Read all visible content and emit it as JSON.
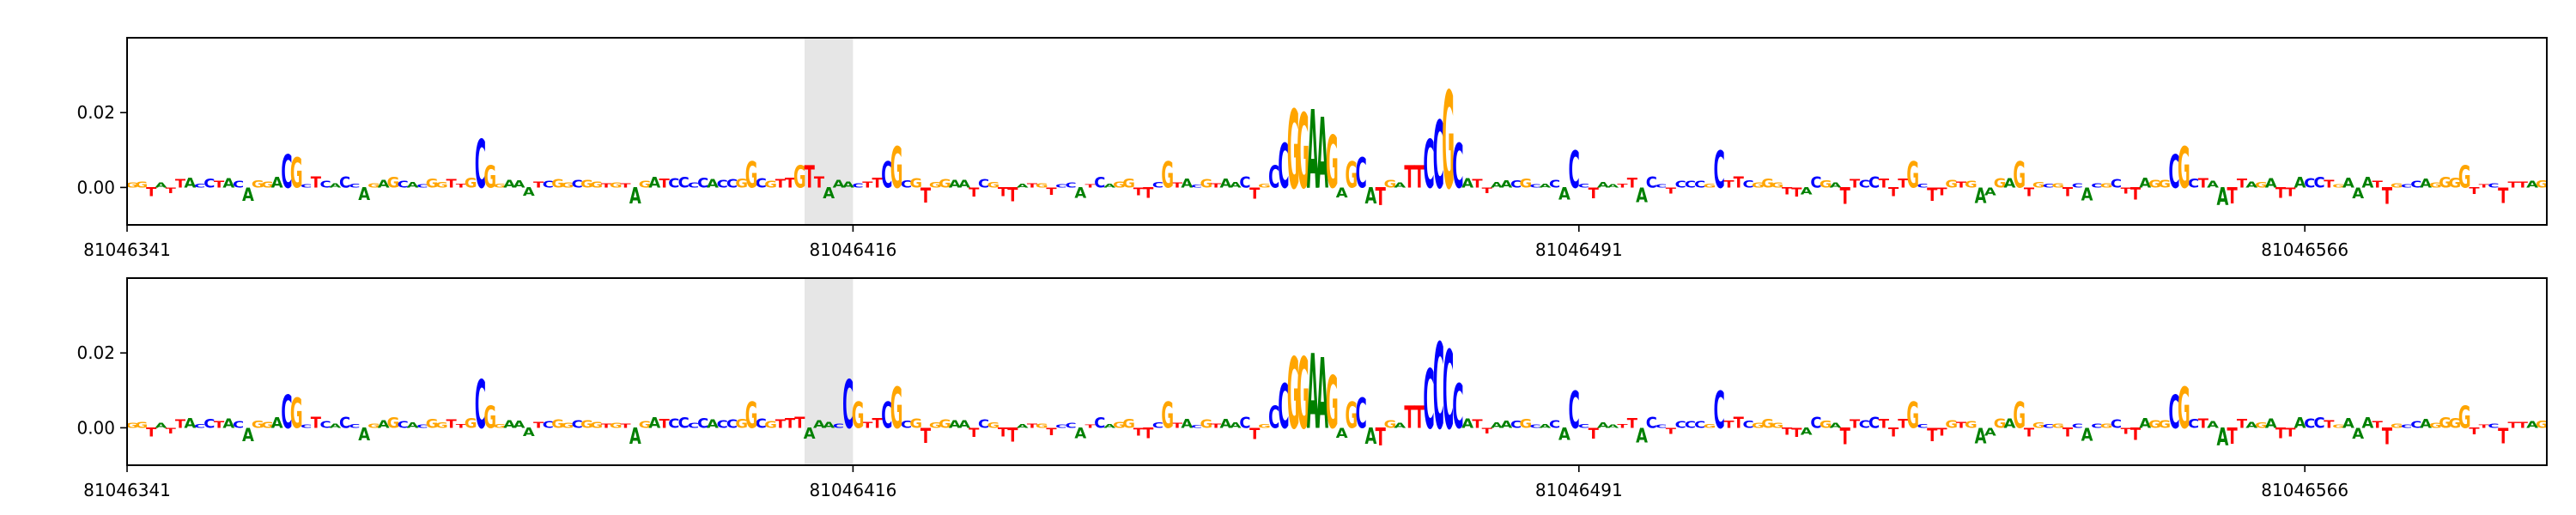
{
  "chart_data": [
    {
      "type": "sequence-logo",
      "panel": "top",
      "x_range": [
        81046341,
        81046591
      ],
      "xticks": [
        81046341,
        81046416,
        81046491,
        81046566
      ],
      "xtick_labels": [
        "81046341",
        "81046416",
        "81046491",
        "81046566"
      ],
      "ylim": [
        -0.01,
        0.04
      ],
      "yticks": [
        0.0,
        0.02
      ],
      "ytick_labels": [
        "0.00",
        "0.02"
      ],
      "highlight_range": [
        81046411,
        81046416
      ],
      "highlight_color": "#e6e6e6",
      "base_colors": {
        "A": "#008000",
        "C": "#0000ff",
        "G": "#ffa500",
        "T": "#ff0000"
      },
      "tall_letters": [
        {
          "pos": 81046357,
          "base": "C",
          "value": 0.009
        },
        {
          "pos": 81046358,
          "base": "G",
          "value": 0.008
        },
        {
          "pos": 81046377,
          "base": "C",
          "value": 0.013
        },
        {
          "pos": 81046378,
          "base": "G",
          "value": 0.006
        },
        {
          "pos": 81046405,
          "base": "G",
          "value": 0.007
        },
        {
          "pos": 81046410,
          "base": "G",
          "value": 0.006
        },
        {
          "pos": 81046411,
          "base": "T",
          "value": 0.006
        },
        {
          "pos": 81046419,
          "base": "C",
          "value": 0.007
        },
        {
          "pos": 81046420,
          "base": "G",
          "value": 0.011
        },
        {
          "pos": 81046448,
          "base": "G",
          "value": 0.007
        },
        {
          "pos": 81046459,
          "base": "C",
          "value": 0.006
        },
        {
          "pos": 81046460,
          "base": "C",
          "value": 0.012
        },
        {
          "pos": 81046461,
          "base": "G",
          "value": 0.021
        },
        {
          "pos": 81046462,
          "base": "G",
          "value": 0.02
        },
        {
          "pos": 81046463,
          "base": "A",
          "value": 0.021
        },
        {
          "pos": 81046464,
          "base": "A",
          "value": 0.019
        },
        {
          "pos": 81046465,
          "base": "G",
          "value": 0.014
        },
        {
          "pos": 81046467,
          "base": "G",
          "value": 0.007
        },
        {
          "pos": 81046468,
          "base": "C",
          "value": 0.008
        },
        {
          "pos": 81046473,
          "base": "T",
          "value": 0.006
        },
        {
          "pos": 81046474,
          "base": "T",
          "value": 0.006
        },
        {
          "pos": 81046475,
          "base": "C",
          "value": 0.013
        },
        {
          "pos": 81046476,
          "base": "C",
          "value": 0.018
        },
        {
          "pos": 81046477,
          "base": "G",
          "value": 0.026
        },
        {
          "pos": 81046478,
          "base": "C",
          "value": 0.012
        },
        {
          "pos": 81046490,
          "base": "C",
          "value": 0.01
        },
        {
          "pos": 81046505,
          "base": "C",
          "value": 0.01
        },
        {
          "pos": 81046525,
          "base": "G",
          "value": 0.007
        },
        {
          "pos": 81046536,
          "base": "G",
          "value": 0.007
        },
        {
          "pos": 81046552,
          "base": "C",
          "value": 0.009
        },
        {
          "pos": 81046553,
          "base": "G",
          "value": 0.011
        },
        {
          "pos": 81046582,
          "base": "G",
          "value": 0.006
        }
      ]
    },
    {
      "type": "sequence-logo",
      "panel": "bottom",
      "x_range": [
        81046341,
        81046591
      ],
      "xticks": [
        81046341,
        81046416,
        81046491,
        81046566
      ],
      "xtick_labels": [
        "81046341",
        "81046416",
        "81046491",
        "81046566"
      ],
      "ylim": [
        -0.01,
        0.04
      ],
      "yticks": [
        0.0,
        0.02
      ],
      "ytick_labels": [
        "0.00",
        "0.02"
      ],
      "highlight_range": [
        81046411,
        81046416
      ],
      "highlight_color": "#e6e6e6",
      "base_colors": {
        "A": "#008000",
        "C": "#0000ff",
        "G": "#ffa500",
        "T": "#ff0000"
      },
      "tall_letters": [
        {
          "pos": 81046357,
          "base": "C",
          "value": 0.009
        },
        {
          "pos": 81046358,
          "base": "G",
          "value": 0.008
        },
        {
          "pos": 81046377,
          "base": "C",
          "value": 0.013
        },
        {
          "pos": 81046378,
          "base": "G",
          "value": 0.006
        },
        {
          "pos": 81046405,
          "base": "G",
          "value": 0.007
        },
        {
          "pos": 81046415,
          "base": "C",
          "value": 0.013
        },
        {
          "pos": 81046416,
          "base": "G",
          "value": 0.007
        },
        {
          "pos": 81046419,
          "base": "C",
          "value": 0.007
        },
        {
          "pos": 81046420,
          "base": "G",
          "value": 0.011
        },
        {
          "pos": 81046448,
          "base": "G",
          "value": 0.007
        },
        {
          "pos": 81046459,
          "base": "C",
          "value": 0.006
        },
        {
          "pos": 81046460,
          "base": "C",
          "value": 0.012
        },
        {
          "pos": 81046461,
          "base": "G",
          "value": 0.019
        },
        {
          "pos": 81046462,
          "base": "G",
          "value": 0.019
        },
        {
          "pos": 81046463,
          "base": "A",
          "value": 0.02
        },
        {
          "pos": 81046464,
          "base": "A",
          "value": 0.019
        },
        {
          "pos": 81046465,
          "base": "G",
          "value": 0.014
        },
        {
          "pos": 81046467,
          "base": "G",
          "value": 0.007
        },
        {
          "pos": 81046468,
          "base": "C",
          "value": 0.008
        },
        {
          "pos": 81046473,
          "base": "T",
          "value": 0.006
        },
        {
          "pos": 81046474,
          "base": "T",
          "value": 0.006
        },
        {
          "pos": 81046475,
          "base": "C",
          "value": 0.016
        },
        {
          "pos": 81046476,
          "base": "C",
          "value": 0.023
        },
        {
          "pos": 81046477,
          "base": "C",
          "value": 0.021
        },
        {
          "pos": 81046478,
          "base": "C",
          "value": 0.012
        },
        {
          "pos": 81046490,
          "base": "C",
          "value": 0.01
        },
        {
          "pos": 81046505,
          "base": "C",
          "value": 0.01
        },
        {
          "pos": 81046525,
          "base": "G",
          "value": 0.007
        },
        {
          "pos": 81046536,
          "base": "G",
          "value": 0.007
        },
        {
          "pos": 81046552,
          "base": "C",
          "value": 0.009
        },
        {
          "pos": 81046553,
          "base": "G",
          "value": 0.011
        },
        {
          "pos": 81046582,
          "base": "G",
          "value": 0.006
        }
      ]
    }
  ]
}
